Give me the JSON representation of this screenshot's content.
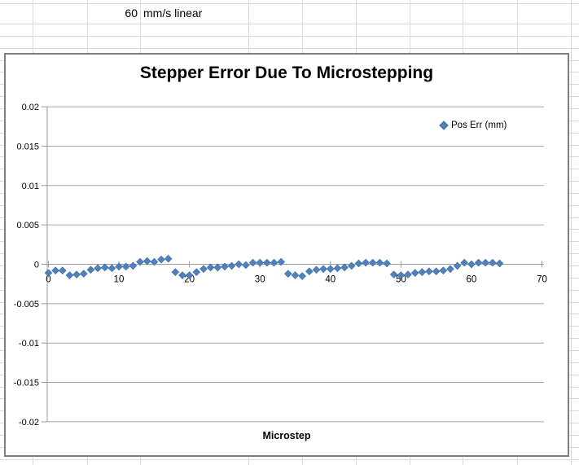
{
  "theme": {
    "marker_color": "#4f81bd",
    "marker_edge_color": "#3f6da3",
    "axis_color": "#9a9a9a",
    "gridline_color": "#a6a6a6",
    "chart_border_color": "#7f7f7f",
    "sheet_gridline_color": "#d9d9d9"
  },
  "spreadsheet": {
    "speed_value": "60",
    "speed_unit": "mm/s linear"
  },
  "chart": {
    "title": "Stepper Error Due To Microstepping",
    "x_axis_title": "Microstep",
    "legend_label": "Pos Err (mm)"
  },
  "chart_data": {
    "type": "scatter",
    "title": "Stepper Error Due To Microstepping",
    "xlabel": "Microstep",
    "ylabel": "",
    "xlim": [
      0,
      70
    ],
    "ylim": [
      -0.02,
      0.02
    ],
    "grid": "horizontal-major",
    "legend_position": "right-upper",
    "x_tick_labels": [
      "0",
      "10",
      "20",
      "30",
      "40",
      "50",
      "60",
      "70"
    ],
    "x_ticks": [
      0,
      10,
      20,
      30,
      40,
      50,
      60,
      70
    ],
    "y_tick_labels": [
      "0.02",
      "0.015",
      "0.01",
      "0.005",
      "0",
      "-0.005",
      "-0.01",
      "-0.015",
      "-0.02"
    ],
    "y_ticks": [
      0.02,
      0.015,
      0.01,
      0.005,
      0,
      -0.005,
      -0.01,
      -0.015,
      -0.02
    ],
    "series": [
      {
        "name": "Pos Err (mm)",
        "marker": "diamond",
        "color": "#4f81bd",
        "x": [
          0,
          1,
          2,
          3,
          4,
          5,
          6,
          7,
          8,
          9,
          10,
          11,
          12,
          13,
          14,
          15,
          16,
          17,
          18,
          19,
          20,
          21,
          22,
          23,
          24,
          25,
          26,
          27,
          28,
          29,
          30,
          31,
          32,
          33,
          34,
          35,
          36,
          37,
          38,
          39,
          40,
          41,
          42,
          43,
          44,
          45,
          46,
          47,
          48,
          49,
          50,
          51,
          52,
          53,
          54,
          55,
          56,
          57,
          58,
          59,
          60,
          61,
          62,
          63,
          64
        ],
        "y": [
          -0.0011,
          -0.0008,
          -0.0008,
          -0.0014,
          -0.0013,
          -0.0012,
          -0.0007,
          -0.0005,
          -0.0004,
          -0.0005,
          -0.0003,
          -0.0003,
          -0.0002,
          0.0003,
          0.0004,
          0.0003,
          0.0006,
          0.0007,
          -0.001,
          -0.0014,
          -0.0014,
          -0.001,
          -0.0006,
          -0.0004,
          -0.0004,
          -0.0003,
          -0.0002,
          0.0,
          -0.0001,
          0.0002,
          0.0002,
          0.0002,
          0.0002,
          0.0003,
          -0.0012,
          -0.0014,
          -0.0015,
          -0.0009,
          -0.0007,
          -0.0006,
          -0.0006,
          -0.0005,
          -0.0004,
          -0.0002,
          0.0001,
          0.0002,
          0.0002,
          0.0002,
          0.0001,
          -0.0013,
          -0.0014,
          -0.0013,
          -0.0011,
          -0.001,
          -0.0009,
          -0.0009,
          -0.0008,
          -0.0006,
          -0.0002,
          0.0002,
          0.0,
          0.0002,
          0.0002,
          0.0002,
          0.0001
        ]
      }
    ]
  }
}
